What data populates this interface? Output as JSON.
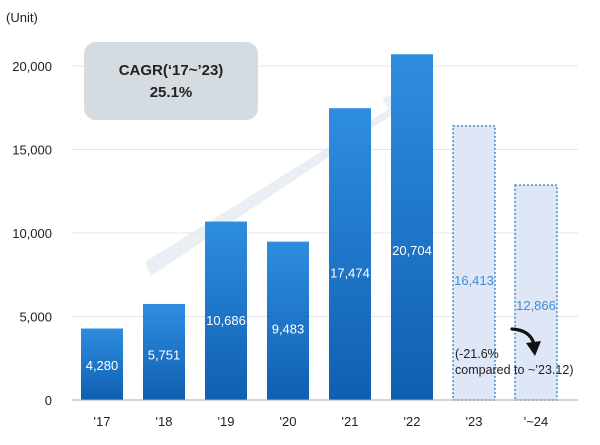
{
  "chart_data": {
    "type": "bar",
    "unit_label": "(Unit)",
    "categories": [
      "'17",
      "'18",
      "'19",
      "'20",
      "'21",
      "'22",
      "'23",
      "'~24"
    ],
    "values": [
      4280,
      5751,
      10686,
      9483,
      17474,
      20704,
      16413,
      12866
    ],
    "value_labels": [
      "4,280",
      "5,751",
      "10,686",
      "9,483",
      "17,474",
      "20,704",
      "16,413",
      "12,866"
    ],
    "bar_style": [
      "actual",
      "actual",
      "actual",
      "actual",
      "actual",
      "actual",
      "projected",
      "projected"
    ],
    "y_ticks": [
      0,
      5000,
      10000,
      15000,
      20000
    ],
    "y_tick_labels": [
      "0",
      "5,000",
      "10,000",
      "15,000",
      "20,000"
    ],
    "ylim": [
      0,
      20000
    ],
    "grid": true,
    "annotations": {
      "cagr_title": "CAGR(‘17~’23)",
      "cagr_value": "25.1%",
      "decline_line1": "(-21.6%",
      "decline_line2": "compared to ~’23.12)"
    },
    "colors": {
      "actual_top": "#2f8de0",
      "actual_bottom": "#0f5fb0",
      "projected_fill": "#dfe6f6",
      "projected_border": "#3d8fd6",
      "projected_text": "#3d8fd6",
      "callout_bg": "#d4dbe1",
      "arrow": "#e3eaf1",
      "grid": "#e4e4e4",
      "axis": "#aaaaaa",
      "text": "#222222"
    }
  }
}
